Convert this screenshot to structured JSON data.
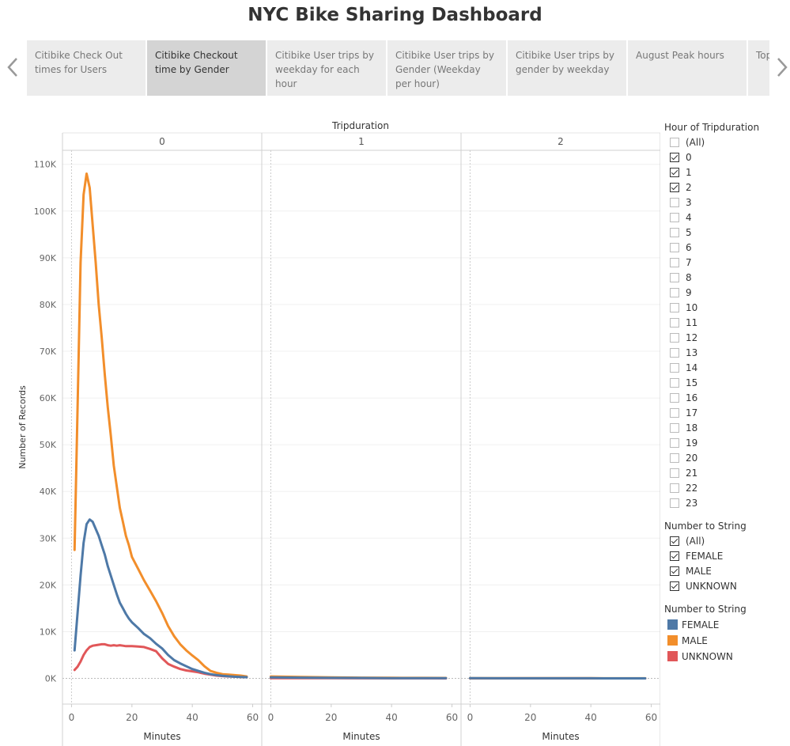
{
  "header": {
    "title": "NYC Bike Sharing Dashboard"
  },
  "tabs": [
    {
      "label": "Citibike Check Out times for Users",
      "active": false
    },
    {
      "label": "Citibike Checkout time by Gender",
      "active": true
    },
    {
      "label": "Citibike User trips by weekday for each hour",
      "active": false
    },
    {
      "label": "Citibike User trips by Gender (Weekday per hour)",
      "active": false
    },
    {
      "label": "Citibike User trips by gender by weekday",
      "active": false
    },
    {
      "label": "August Peak hours",
      "active": false
    },
    {
      "label": "Top",
      "active": false
    }
  ],
  "icons": {
    "prev": "chevron-left-icon",
    "next": "chevron-right-icon"
  },
  "filters": {
    "hour": {
      "title": "Hour of Tripduration",
      "items": [
        {
          "label": "(All)",
          "checked": false
        },
        {
          "label": "0",
          "checked": true
        },
        {
          "label": "1",
          "checked": true
        },
        {
          "label": "2",
          "checked": true
        },
        {
          "label": "3",
          "checked": false
        },
        {
          "label": "4",
          "checked": false
        },
        {
          "label": "5",
          "checked": false
        },
        {
          "label": "6",
          "checked": false
        },
        {
          "label": "7",
          "checked": false
        },
        {
          "label": "8",
          "checked": false
        },
        {
          "label": "9",
          "checked": false
        },
        {
          "label": "10",
          "checked": false
        },
        {
          "label": "11",
          "checked": false
        },
        {
          "label": "12",
          "checked": false
        },
        {
          "label": "13",
          "checked": false
        },
        {
          "label": "14",
          "checked": false
        },
        {
          "label": "15",
          "checked": false
        },
        {
          "label": "16",
          "checked": false
        },
        {
          "label": "17",
          "checked": false
        },
        {
          "label": "18",
          "checked": false
        },
        {
          "label": "19",
          "checked": false
        },
        {
          "label": "20",
          "checked": false
        },
        {
          "label": "21",
          "checked": false
        },
        {
          "label": "22",
          "checked": false
        },
        {
          "label": "23",
          "checked": false
        }
      ]
    },
    "gender": {
      "title": "Number to String",
      "items": [
        {
          "label": "(All)",
          "checked": true
        },
        {
          "label": "FEMALE",
          "checked": true
        },
        {
          "label": "MALE",
          "checked": true
        },
        {
          "label": "UNKNOWN",
          "checked": true
        }
      ]
    }
  },
  "color_legend": {
    "title": "Number to String",
    "items": [
      {
        "label": "FEMALE",
        "color": "#4e79a7"
      },
      {
        "label": "MALE",
        "color": "#f28e2b"
      },
      {
        "label": "UNKNOWN",
        "color": "#e15759"
      }
    ]
  },
  "chart_data": {
    "type": "line",
    "title": "Tripduration",
    "facet_label": "Tripduration",
    "xlabel": "Minutes",
    "ylabel": "Number of Records",
    "xlim": [
      -3,
      63
    ],
    "ylim": [
      -5500,
      113000
    ],
    "x_ticks": [
      0,
      20,
      40,
      60
    ],
    "x_tick_labels": [
      "0",
      "20",
      "40",
      "60"
    ],
    "y_ticks": [
      0,
      10000,
      20000,
      30000,
      40000,
      50000,
      60000,
      70000,
      80000,
      90000,
      100000,
      110000
    ],
    "y_tick_labels": [
      "0K",
      "10K",
      "20K",
      "30K",
      "40K",
      "50K",
      "60K",
      "70K",
      "80K",
      "90K",
      "100K",
      "110K"
    ],
    "grid": true,
    "legend": "right",
    "panels": [
      {
        "label": "0",
        "series": [
          {
            "name": "FEMALE",
            "color": "#4e79a7",
            "x": [
              1,
              2,
              3,
              4,
              5,
              6,
              7,
              8,
              9,
              10,
              11,
              12,
              13,
              14,
              15,
              16,
              17,
              18,
              19,
              20,
              22,
              24,
              26,
              28,
              30,
              32,
              34,
              36,
              38,
              40,
              42,
              44,
              46,
              48,
              50,
              52,
              54,
              56,
              58
            ],
            "y": [
              6000,
              14000,
              22000,
              29000,
              33000,
              34000,
              33500,
              32000,
              30500,
              28500,
              26500,
              24000,
              22000,
              20000,
              18000,
              16200,
              15000,
              13800,
              12800,
              12000,
              10800,
              9500,
              8600,
              7400,
              6400,
              5000,
              3900,
              3200,
              2600,
              2000,
              1600,
              1200,
              900,
              700,
              550,
              450,
              350,
              300,
              250
            ]
          },
          {
            "name": "MALE",
            "color": "#f28e2b",
            "x": [
              1,
              2,
              3,
              4,
              5,
              6,
              7,
              8,
              9,
              10,
              11,
              12,
              13,
              14,
              15,
              16,
              17,
              18,
              19,
              20,
              22,
              24,
              26,
              28,
              30,
              32,
              34,
              36,
              38,
              40,
              42,
              44,
              46,
              48,
              50,
              52,
              54,
              56,
              58
            ],
            "y": [
              27500,
              58000,
              89000,
              103500,
              108000,
              105000,
              97000,
              89000,
              80000,
              73000,
              65000,
              58000,
              52000,
              45500,
              41000,
              36500,
              33500,
              30500,
              28500,
              26000,
              23500,
              21000,
              18800,
              16500,
              14000,
              11200,
              9000,
              7300,
              6000,
              4900,
              3900,
              2600,
              1600,
              1200,
              900,
              800,
              700,
              600,
              400
            ]
          },
          {
            "name": "UNKNOWN",
            "color": "#e15759",
            "x": [
              1,
              2,
              3,
              4,
              5,
              6,
              7,
              8,
              9,
              10,
              11,
              12,
              13,
              14,
              15,
              16,
              17,
              18,
              19,
              20,
              22,
              24,
              26,
              28,
              30,
              32,
              34,
              36,
              38,
              40,
              42,
              44,
              46,
              48,
              50,
              52,
              54,
              56,
              58
            ],
            "y": [
              1800,
              2500,
              3600,
              5000,
              6000,
              6700,
              7000,
              7100,
              7200,
              7300,
              7300,
              7100,
              7000,
              7100,
              7000,
              7100,
              7000,
              6900,
              6900,
              6900,
              6800,
              6700,
              6300,
              5800,
              4300,
              3100,
              2500,
              2000,
              1700,
              1500,
              1300,
              1000,
              800,
              600,
              500,
              400,
              350,
              300,
              250
            ]
          }
        ]
      },
      {
        "label": "1",
        "series": [
          {
            "name": "FEMALE",
            "color": "#4e79a7",
            "x": [
              0,
              10,
              20,
              30,
              40,
              50,
              58
            ],
            "y": [
              200,
              150,
              100,
              80,
              60,
              50,
              50
            ]
          },
          {
            "name": "MALE",
            "color": "#f28e2b",
            "x": [
              0,
              10,
              20,
              30,
              40,
              50,
              58
            ],
            "y": [
              400,
              300,
              200,
              150,
              120,
              100,
              80
            ]
          },
          {
            "name": "UNKNOWN",
            "color": "#e15759",
            "x": [
              0,
              10,
              20,
              30,
              40,
              50,
              58
            ],
            "y": [
              50,
              40,
              30,
              20,
              20,
              15,
              10
            ]
          }
        ]
      },
      {
        "label": "2",
        "series": [
          {
            "name": "FEMALE",
            "color": "#4e79a7",
            "x": [
              0,
              10,
              20,
              30,
              40,
              50,
              58
            ],
            "y": [
              30,
              25,
              20,
              20,
              15,
              10,
              10
            ]
          },
          {
            "name": "MALE",
            "color": "#f28e2b",
            "x": [
              0,
              10,
              20,
              30,
              40,
              50,
              58
            ],
            "y": [
              60,
              50,
              40,
              35,
              30,
              25,
              20
            ]
          },
          {
            "name": "UNKNOWN",
            "color": "#e15759",
            "x": [
              0,
              10,
              20,
              30,
              40,
              50,
              58
            ],
            "y": [
              10,
              8,
              5,
              5,
              5,
              5,
              5
            ]
          }
        ]
      }
    ]
  }
}
